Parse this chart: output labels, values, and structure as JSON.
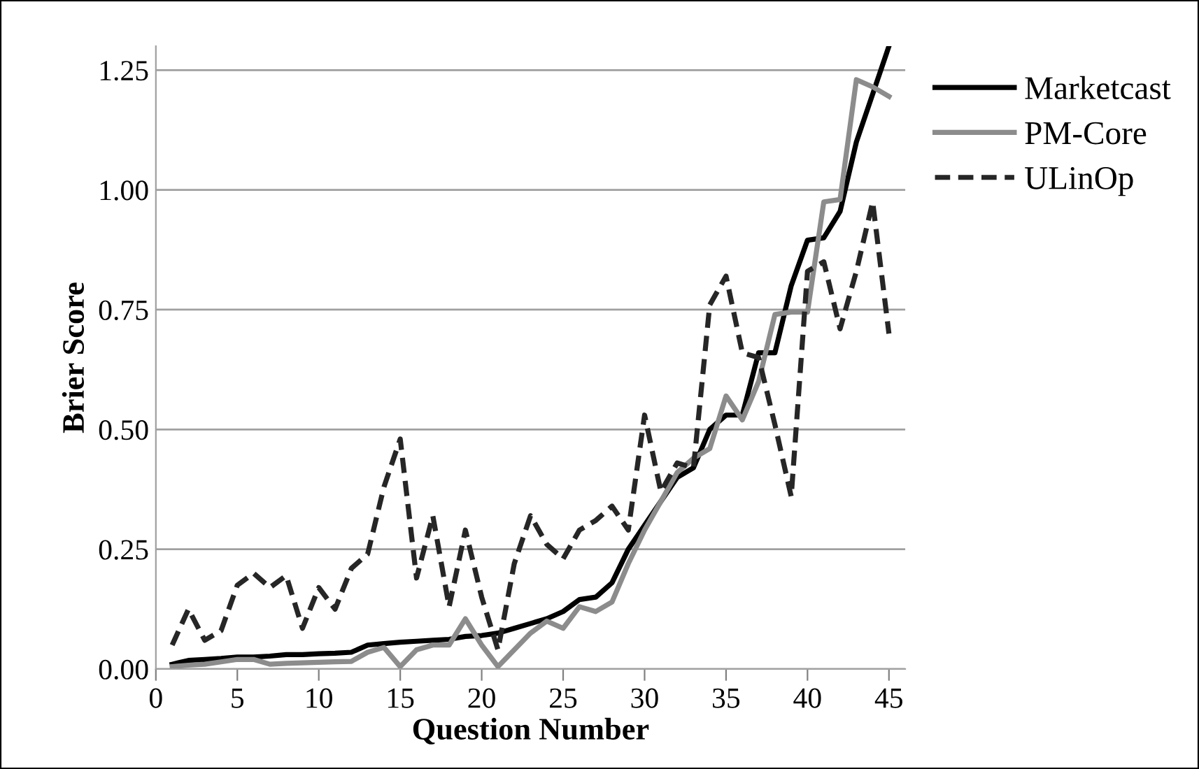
{
  "chart_data": {
    "type": "line",
    "xlabel": "Question Number",
    "ylabel": "Brier Score",
    "x": [
      1,
      2,
      3,
      4,
      5,
      6,
      7,
      8,
      9,
      10,
      11,
      12,
      13,
      14,
      15,
      16,
      17,
      18,
      19,
      20,
      21,
      22,
      23,
      24,
      25,
      26,
      27,
      28,
      29,
      30,
      31,
      32,
      33,
      34,
      35,
      36,
      37,
      38,
      39,
      40,
      41,
      42,
      43,
      44,
      45
    ],
    "series": [
      {
        "name": "Marketcast",
        "color": "#000000",
        "line_style": "solid",
        "values": [
          0.01,
          0.018,
          0.02,
          0.022,
          0.025,
          0.025,
          0.027,
          0.03,
          0.03,
          0.032,
          0.033,
          0.035,
          0.05,
          0.053,
          0.056,
          0.058,
          0.06,
          0.062,
          0.068,
          0.07,
          0.075,
          0.085,
          0.095,
          0.105,
          0.12,
          0.145,
          0.15,
          0.18,
          0.25,
          0.3,
          0.35,
          0.4,
          0.42,
          0.5,
          0.53,
          0.53,
          0.66,
          0.66,
          0.8,
          0.895,
          0.9,
          0.955,
          1.1,
          1.2,
          1.3
        ]
      },
      {
        "name": "PM-Core",
        "color": "#8c8c8c",
        "line_style": "solid",
        "values": [
          0.005,
          0.008,
          0.01,
          0.015,
          0.02,
          0.02,
          0.01,
          0.012,
          0.013,
          0.014,
          0.015,
          0.016,
          0.035,
          0.045,
          0.005,
          0.04,
          0.05,
          0.05,
          0.105,
          0.05,
          0.005,
          0.04,
          0.075,
          0.1,
          0.085,
          0.13,
          0.12,
          0.14,
          0.22,
          0.29,
          0.35,
          0.41,
          0.44,
          0.46,
          0.57,
          0.52,
          0.6,
          0.74,
          0.745,
          0.745,
          0.975,
          0.98,
          1.23,
          1.215,
          1.195
        ]
      },
      {
        "name": "ULinOp",
        "color": "#262626",
        "line_style": "dashed",
        "values": [
          0.05,
          0.125,
          0.06,
          0.08,
          0.175,
          0.2,
          0.17,
          0.195,
          0.085,
          0.17,
          0.125,
          0.21,
          0.24,
          0.38,
          0.48,
          0.19,
          0.32,
          0.13,
          0.29,
          0.15,
          0.04,
          0.22,
          0.32,
          0.26,
          0.23,
          0.29,
          0.31,
          0.34,
          0.29,
          0.53,
          0.37,
          0.43,
          0.42,
          0.76,
          0.82,
          0.66,
          0.65,
          0.51,
          0.36,
          0.83,
          0.85,
          0.71,
          0.83,
          0.975,
          0.7
        ]
      }
    ],
    "xlim": [
      0,
      46
    ],
    "xticks": [
      0,
      5,
      10,
      15,
      20,
      25,
      30,
      35,
      40,
      45
    ],
    "ylim": [
      0,
      1.3
    ],
    "yticks": [
      {
        "value": 0,
        "label": "0.00"
      },
      {
        "value": 0.25,
        "label": "0.25"
      },
      {
        "value": 0.5,
        "label": "0.50"
      },
      {
        "value": 0.75,
        "label": "0.75"
      },
      {
        "value": 1,
        "label": "1.00"
      },
      {
        "value": 1.25,
        "label": "1.25"
      }
    ],
    "grid": "y",
    "legend": "top right",
    "marker": "none"
  }
}
